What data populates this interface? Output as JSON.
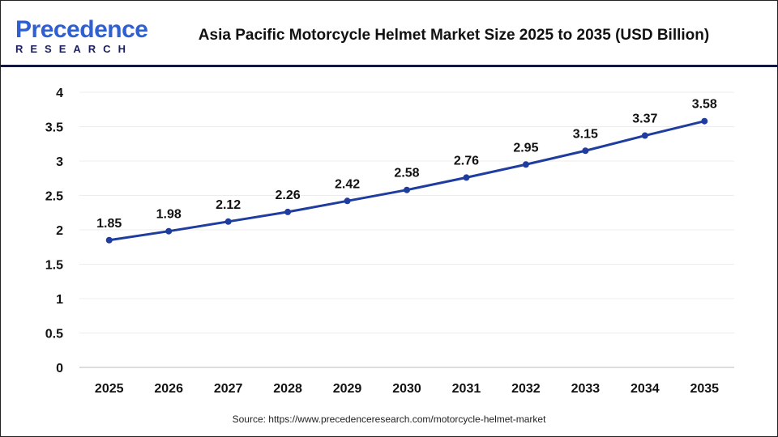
{
  "logo": {
    "line1a": "P",
    "line1b": "recedence",
    "line2": "RESEARCH"
  },
  "title": "Asia Pacific Motorcycle Helmet Market Size 2025 to 2035 (USD Billion)",
  "source": "Source: https://www.precedenceresearch.com/motorcycle-helmet-market",
  "chart_data": {
    "type": "line",
    "title": "Asia Pacific Motorcycle Helmet Market Size 2025 to 2035 (USD Billion)",
    "categories": [
      "2025",
      "2026",
      "2027",
      "2028",
      "2029",
      "2030",
      "2031",
      "2032",
      "2033",
      "2034",
      "2035"
    ],
    "values": [
      1.85,
      1.98,
      2.12,
      2.26,
      2.42,
      2.58,
      2.76,
      2.95,
      3.15,
      3.37,
      3.58
    ],
    "ylim": [
      0,
      4
    ],
    "yticks": [
      "0",
      "0.5",
      "1",
      "1.5",
      "2",
      "2.5",
      "3",
      "3.5",
      "4"
    ],
    "grid": true,
    "line_color": "#1f3d9e"
  }
}
